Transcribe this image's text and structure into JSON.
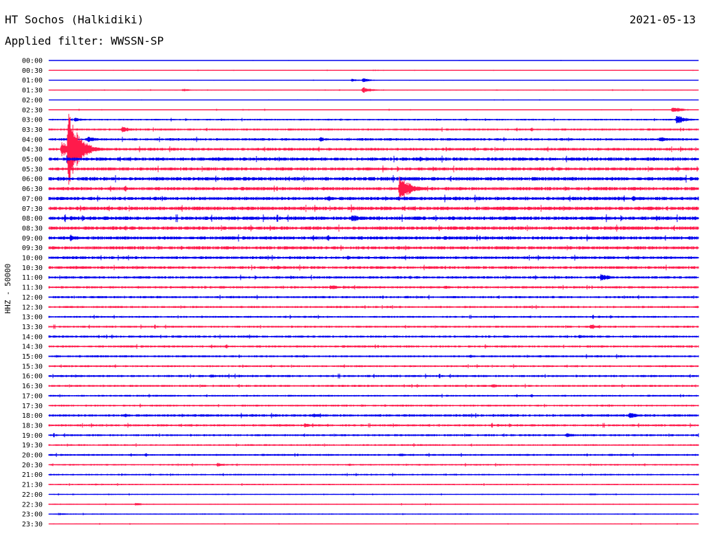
{
  "header": {
    "station": "HT Sochos (Halkidiki)",
    "date": "2021-05-13",
    "filter": "Applied filter: WWSSN-SP"
  },
  "ylabel": "HHZ - 50000",
  "colors": {
    "even_row": "#0000ee",
    "odd_row": "#ff1a4b",
    "background": "#ffffff"
  },
  "chart_data": {
    "type": "line",
    "title": "HT Sochos (Halkidiki)",
    "ylabel": "HHZ - 50000",
    "rows": [
      "00:00",
      "00:30",
      "01:00",
      "01:30",
      "02:00",
      "02:30",
      "03:00",
      "03:30",
      "04:00",
      "04:30",
      "05:00",
      "05:30",
      "06:00",
      "06:30",
      "07:00",
      "07:30",
      "08:00",
      "08:30",
      "09:00",
      "09:30",
      "10:00",
      "10:30",
      "11:00",
      "11:30",
      "12:00",
      "12:30",
      "13:00",
      "13:30",
      "14:00",
      "14:30",
      "15:00",
      "15:30",
      "16:00",
      "16:30",
      "17:00",
      "17:30",
      "18:00",
      "18:30",
      "19:00",
      "19:30",
      "20:00",
      "20:30",
      "21:00",
      "21:30",
      "22:00",
      "22:30",
      "23:00",
      "23:30"
    ],
    "noise_level": [
      0.3,
      0.5,
      0.4,
      0.6,
      0.4,
      0.8,
      1.2,
      1.5,
      1.8,
      2.0,
      2.4,
      2.3,
      2.6,
      2.4,
      2.5,
      2.6,
      2.6,
      2.5,
      2.4,
      2.3,
      2.0,
      2.0,
      1.8,
      1.7,
      1.6,
      1.5,
      1.4,
      1.5,
      1.6,
      1.6,
      1.5,
      1.4,
      1.6,
      1.5,
      1.3,
      1.4,
      1.8,
      1.6,
      1.5,
      1.3,
      1.4,
      1.2,
      1.2,
      1.0,
      0.8,
      0.9,
      0.8,
      0.6
    ],
    "events": [
      {
        "row": 2,
        "minute": 14.0,
        "amp": 2.2
      },
      {
        "row": 2,
        "minute": 14.5,
        "amp": 3.0
      },
      {
        "row": 3,
        "minute": 14.5,
        "amp": 4.5
      },
      {
        "row": 3,
        "minute": 6.2,
        "amp": 2.0
      },
      {
        "row": 5,
        "minute": 28.8,
        "amp": 5.0
      },
      {
        "row": 6,
        "minute": 29.0,
        "amp": 7.0
      },
      {
        "row": 6,
        "minute": 1.2,
        "amp": 3.0
      },
      {
        "row": 7,
        "minute": 3.4,
        "amp": 4.5
      },
      {
        "row": 9,
        "minute": 0.6,
        "amp": 12.0
      },
      {
        "row": 9,
        "minute": 0.9,
        "amp": 60.0
      },
      {
        "row": 8,
        "minute": 1.8,
        "amp": 4.5
      },
      {
        "row": 8,
        "minute": 12.5,
        "amp": 3.5
      },
      {
        "row": 8,
        "minute": 28.2,
        "amp": 4.5
      },
      {
        "row": 13,
        "minute": 16.2,
        "amp": 22.0
      },
      {
        "row": 13,
        "minute": 12.7,
        "amp": 3.0
      },
      {
        "row": 16,
        "minute": 14.0,
        "amp": 6.0
      },
      {
        "row": 16,
        "minute": 17.0,
        "amp": 3.5
      },
      {
        "row": 15,
        "minute": 27.2,
        "amp": 3.0
      },
      {
        "row": 14,
        "minute": 27.0,
        "amp": 4.0
      },
      {
        "row": 18,
        "minute": 1.0,
        "amp": 5.0
      },
      {
        "row": 19,
        "minute": 18.0,
        "amp": 3.0
      },
      {
        "row": 20,
        "minute": 13.8,
        "amp": 3.0
      },
      {
        "row": 22,
        "minute": 25.5,
        "amp": 5.5
      },
      {
        "row": 23,
        "minute": 13.0,
        "amp": 4.0
      },
      {
        "row": 23,
        "minute": 18.3,
        "amp": 3.0
      },
      {
        "row": 27,
        "minute": 25.0,
        "amp": 3.5
      },
      {
        "row": 28,
        "minute": 24.5,
        "amp": 3.0
      },
      {
        "row": 32,
        "minute": 7.5,
        "amp": 2.8
      },
      {
        "row": 33,
        "minute": 20.5,
        "amp": 3.0
      },
      {
        "row": 36,
        "minute": 12.2,
        "amp": 3.5
      },
      {
        "row": 36,
        "minute": 26.8,
        "amp": 4.5
      },
      {
        "row": 37,
        "minute": 11.8,
        "amp": 3.0
      },
      {
        "row": 38,
        "minute": 23.9,
        "amp": 3.5
      },
      {
        "row": 40,
        "minute": 16.2,
        "amp": 2.8
      },
      {
        "row": 41,
        "minute": 7.8,
        "amp": 3.0
      },
      {
        "row": 44,
        "minute": 25.0,
        "amp": 2.0
      },
      {
        "row": 45,
        "minute": 4.0,
        "amp": 2.5
      },
      {
        "row": 46,
        "minute": 0.5,
        "amp": 1.8
      }
    ]
  }
}
